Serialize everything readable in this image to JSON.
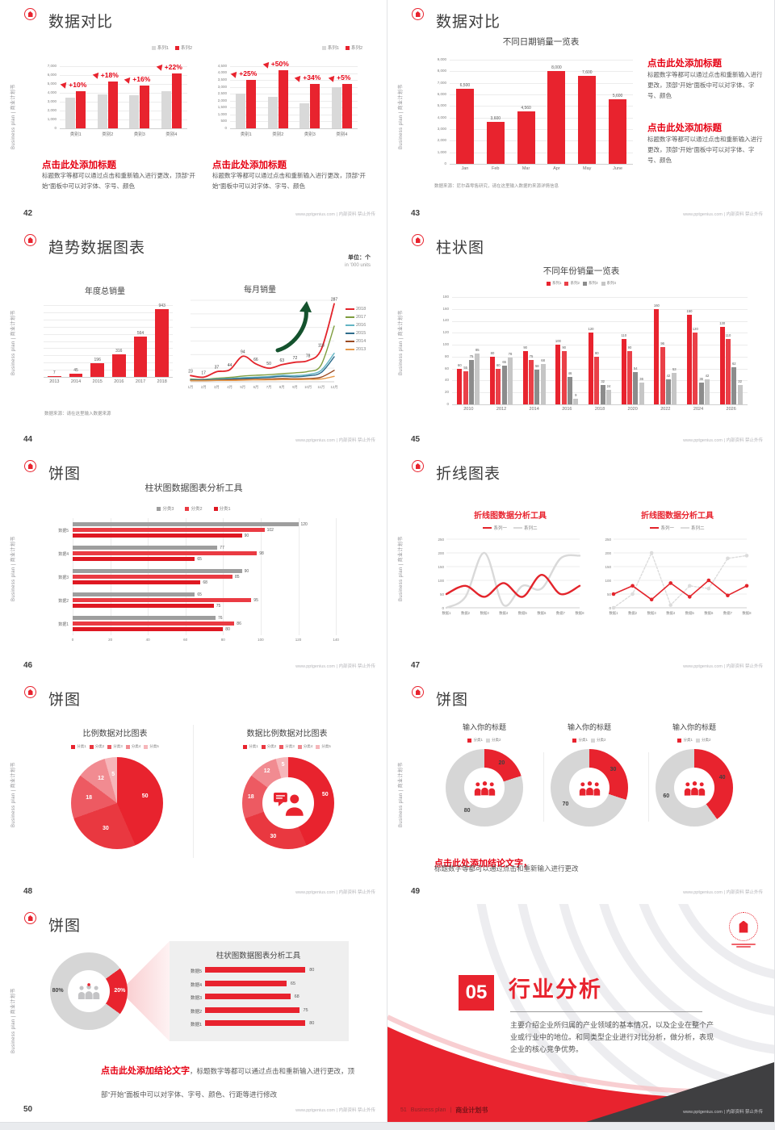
{
  "common": {
    "sidebar": "Business plan | 商业计划书",
    "footer": "www.pptgenius.com | 内部资料 禁止外传"
  },
  "colors": {
    "accent": "#E8232E",
    "accent_text": "#E60012",
    "gray_bar": "#D9D9D9",
    "dark_gray_bar": "#9E9E9E",
    "light_gray_bar": "#C6C6C6",
    "grid": "#ECECEC",
    "panel": "#EFEFEF",
    "dark_corner": "#3F3F41"
  },
  "icons": {
    "up_arrow": "dart-up-icon",
    "people": "team-people-icon",
    "person_chat": "presenter-icon",
    "growth_arrow": "growth-arrow-icon",
    "logo": "brand-logo-icon"
  },
  "slides": {
    "s42": {
      "title": "数据对比",
      "heading": "点击此处添加标题",
      "body_left": "标题数字等都可以通过点击和重新输入进行更改，顶部“开始”面板中可以对字体、字号、颜色",
      "body_right": "标题数字等都可以通过点击和重新输入进行更改，顶部“开始”面板中可以对字体、字号、颜色",
      "page": "42"
    },
    "s43": {
      "title": "数据对比",
      "heading1": "点击此处添加标题",
      "body1": "标题数字等都可以通过点击和重新输入进行更改，顶部“开始”面板中可以对字体、字号、颜色",
      "heading2": "点击此处添加标题",
      "body2": "标题数字等都可以通过点击和重新输入进行更改，顶部“开始”面板中可以对字体、字号、颜色",
      "page": "43"
    },
    "s44": {
      "title": "趋势数据图表",
      "unit1": "单位：个",
      "unit2": "in '000 units",
      "source": "数据来源：请在这里输入数据来源",
      "page": "44"
    },
    "s45": {
      "title": "柱状图",
      "page": "45"
    },
    "s46": {
      "title": "饼图",
      "page": "46"
    },
    "s47": {
      "title": "折线图表",
      "page": "47"
    },
    "s48": {
      "title": "饼图",
      "page": "48"
    },
    "s49": {
      "title": "饼图",
      "conclusion": "点击此处添加结论文字，",
      "conclusion_body": "标题数字等都可以通过点击和重新输入进行更改",
      "page": "49"
    },
    "s50": {
      "title": "饼图",
      "conclusion": "点击此处添加结论文字",
      "conclusion_tail": "，标题数字等都可以通过点击和重新输入进行更改，顶部“开始”面板中可以对字体、字号、颜色、行距等进行修改",
      "page": "50"
    },
    "s51": {
      "num": "05",
      "title": "行业分析",
      "body": "主要介绍企业所归属的产业领域的基本情况，以及企业在整个产业或行业中的地位。和同类型企业进行对比分析，做分析，表现企业的核心竞争优势。",
      "brand_en": "Business plan",
      "brand_sep": "|",
      "brand_cn": "商业计划书",
      "page": "51"
    }
  },
  "chart_data": [
    {
      "id": "c42a",
      "type": "bar",
      "ylim": [
        0,
        7000
      ],
      "ystep": 1000,
      "mt": 14,
      "categories": [
        "类别1",
        "类别2",
        "类别3",
        "类别4"
      ],
      "legend": [
        {
          "t": "系列1",
          "c": "#D9D9D9"
        },
        {
          "t": "系列2",
          "c": "#E8232E"
        }
      ],
      "series": [
        {
          "name": "系列1",
          "color": "#D9D9D9",
          "values": [
            3500,
            3800,
            3700,
            4200
          ]
        },
        {
          "name": "系列2",
          "color": "#E8232E",
          "values": [
            4200,
            5300,
            4800,
            6200
          ]
        }
      ],
      "annotations": [
        "+10%",
        "+18%",
        "+16%",
        "+22%"
      ]
    },
    {
      "id": "c42b",
      "type": "bar",
      "ylim": [
        0,
        4500
      ],
      "ystep": 500,
      "mt": 14,
      "categories": [
        "类别1",
        "类别2",
        "类别3",
        "类别4"
      ],
      "legend": [
        {
          "t": "系列1",
          "c": "#D9D9D9"
        },
        {
          "t": "系列2",
          "c": "#E8232E"
        }
      ],
      "series": [
        {
          "name": "系列1",
          "color": "#D9D9D9",
          "values": [
            2500,
            2300,
            1800,
            3000
          ]
        },
        {
          "name": "系列2",
          "color": "#E8232E",
          "values": [
            3500,
            4200,
            3200,
            3200
          ]
        }
      ],
      "annotations": [
        "+25%",
        "+50%",
        "+34%",
        "+5%"
      ]
    },
    {
      "id": "c43",
      "type": "bar",
      "title": "不同日期销量一览表",
      "source": "数据来源：尼尔森零售研究，请在这里输入数据的来源详情信息",
      "ylim": [
        0,
        9000
      ],
      "ystep": 1000,
      "mt": 12,
      "bw": 22,
      "vlabels": true,
      "categories": [
        "Jan",
        "Feb",
        "Mar",
        "Apr",
        "May",
        "June"
      ],
      "value_labels": [
        "6,500",
        "3,600",
        "4,560",
        "8,000",
        "7,600",
        "5,600"
      ],
      "series": [
        {
          "name": "销量",
          "color": "#E8232E",
          "values": [
            6500,
            3600,
            4560,
            8000,
            7600,
            5600
          ]
        }
      ]
    },
    {
      "id": "c44a",
      "type": "bar",
      "title": "年度总销量",
      "ylim": [
        0,
        1000
      ],
      "ystep": 100,
      "mt": 10,
      "showY": false,
      "vlabels": true,
      "categories": [
        "2013",
        "2014",
        "2015",
        "2016",
        "2017",
        "2018"
      ],
      "series": [
        {
          "name": "销量",
          "color": "#E8232E",
          "values": [
            7,
            45,
            196,
            316,
            564,
            943
          ]
        }
      ]
    },
    {
      "id": "c44b",
      "type": "line",
      "title": "每月销量",
      "ylim": [
        0,
        300
      ],
      "ystep": 50,
      "showY": false,
      "smooth": true,
      "x": [
        "1月",
        "2月",
        "3月",
        "4月",
        "5月",
        "6月",
        "7月",
        "8月",
        "9月",
        "10月",
        "11月",
        "12月"
      ],
      "legend": [
        {
          "t": "2018",
          "c": "#E3242B",
          "shape": "line"
        },
        {
          "t": "2017",
          "c": "#7F9D3F",
          "shape": "line"
        },
        {
          "t": "2016",
          "c": "#63B5C4",
          "shape": "line"
        },
        {
          "t": "2015",
          "c": "#2F6D8C",
          "shape": "line"
        },
        {
          "t": "2014",
          "c": "#9A4A21",
          "shape": "line"
        },
        {
          "t": "2013",
          "c": "#E79A4B",
          "shape": "line"
        }
      ],
      "series": [
        {
          "name": "2018",
          "color": "#E3242B",
          "w": 1.8,
          "labels": true,
          "values": [
            23,
            17,
            37,
            44,
            94,
            66,
            50,
            63,
            72,
            78,
            118,
            287
          ]
        },
        {
          "name": "2017",
          "color": "#7F9D3F",
          "values": [
            10,
            9,
            13,
            16,
            21,
            24,
            26,
            30,
            33,
            38,
            62,
            205
          ]
        },
        {
          "name": "2016",
          "color": "#63B5C4",
          "values": [
            8,
            8,
            10,
            12,
            15,
            17,
            19,
            24,
            23,
            27,
            42,
            105
          ]
        },
        {
          "name": "2015",
          "color": "#2F6D8C",
          "values": [
            6,
            7,
            8,
            10,
            12,
            14,
            16,
            20,
            18,
            22,
            34,
            92
          ]
        },
        {
          "name": "2014",
          "color": "#9A4A21",
          "values": [
            5,
            5,
            6,
            7,
            8,
            9,
            10,
            12,
            11,
            12,
            17,
            42
          ]
        },
        {
          "name": "2013",
          "color": "#E79A4B",
          "values": [
            4,
            4,
            5,
            5,
            6,
            7,
            7,
            8,
            8,
            9,
            10,
            20
          ]
        }
      ]
    },
    {
      "id": "c45",
      "type": "bar",
      "title": "不同年份销量一览表",
      "ylim": [
        0,
        180
      ],
      "ystep": 20,
      "mt": 8,
      "yw": 16,
      "vlabels": true,
      "vfs": 4.2,
      "categories": [
        "2010",
        "2012",
        "2014",
        "2016",
        "2018",
        "2020",
        "2022",
        "2024",
        "2026"
      ],
      "legend": [
        {
          "t": "系列1",
          "c": "#E8232E"
        },
        {
          "t": "系列2",
          "c": "#EA4048"
        },
        {
          "t": "系列3",
          "c": "#8C8C8C"
        },
        {
          "t": "系列4",
          "c": "#C6C6C6"
        }
      ],
      "series": [
        {
          "name": "系列1",
          "color": "#E8232E",
          "values": [
            60,
            80,
            90,
            100,
            120,
            110,
            160,
            150,
            130
          ]
        },
        {
          "name": "系列2",
          "color": "#EA4048",
          "values": [
            55,
            60,
            75,
            90,
            80,
            90,
            96,
            120,
            110
          ]
        },
        {
          "name": "系列3",
          "color": "#8C8C8C",
          "values": [
            75,
            65,
            58,
            46,
            32,
            54,
            42,
            36,
            62
          ]
        },
        {
          "name": "系列4",
          "color": "#C6C6C6",
          "values": [
            85,
            78,
            68,
            9,
            24,
            36,
            53,
            42,
            32
          ]
        }
      ]
    },
    {
      "id": "c46",
      "type": "barh",
      "title": "柱状图数据图表分析工具",
      "xlim": [
        0,
        152
      ],
      "xstep": 20,
      "xtickmax": 140,
      "lw": 30,
      "categories": [
        "数据5",
        "数据4",
        "数据3",
        "数据2",
        "数据1"
      ],
      "legend": [
        {
          "t": "分类3",
          "c": "#9E9E9E"
        },
        {
          "t": "分类2",
          "c": "#EA3B43"
        },
        {
          "t": "分类1",
          "c": "#DF1822"
        }
      ],
      "series": [
        {
          "name": "分类3",
          "color": "#9E9E9E",
          "values": [
            120,
            77,
            90,
            65,
            76
          ]
        },
        {
          "name": "分类2",
          "color": "#EA3B43",
          "values": [
            102,
            98,
            85,
            95,
            86
          ]
        },
        {
          "name": "分类1",
          "color": "#DF1822",
          "values": [
            90,
            65,
            68,
            75,
            80
          ]
        }
      ]
    },
    {
      "id": "c47a",
      "type": "line",
      "title": "折线图数据分析工具",
      "ylim": [
        0,
        250
      ],
      "ystep": 50,
      "showY": true,
      "smooth": true,
      "x": [
        "数据1",
        "数据2",
        "数据3",
        "数据4",
        "数据5",
        "数据6",
        "数据7",
        "数据8"
      ],
      "legend": [
        {
          "t": "系列一",
          "c": "#E3242B",
          "shape": "line"
        },
        {
          "t": "系列二",
          "c": "#D9D9D9",
          "shape": "line"
        }
      ],
      "series": [
        {
          "name": "系列二",
          "color": "#D9D9D9",
          "w": 2.4,
          "values": [
            0,
            40,
            200,
            10,
            80,
            70,
            180,
            190
          ]
        },
        {
          "name": "系列一",
          "color": "#E3242B",
          "w": 2.4,
          "values": [
            50,
            80,
            40,
            90,
            40,
            120,
            50,
            80
          ]
        }
      ]
    },
    {
      "id": "c47b",
      "type": "line",
      "title": "折线图数据分析工具",
      "ylim": [
        0,
        250
      ],
      "ystep": 50,
      "showY": true,
      "markers": true,
      "x": [
        "数据1",
        "数据2",
        "数据3",
        "数据4",
        "数据5",
        "数据6",
        "数据7",
        "数据8"
      ],
      "legend": [
        {
          "t": "系列一",
          "c": "#E3242B",
          "shape": "line"
        },
        {
          "t": "系列二",
          "c": "#DCDCDC",
          "shape": "line"
        }
      ],
      "series": [
        {
          "name": "系列二",
          "color": "#DCDCDC",
          "w": 1.4,
          "dash": "2.5,2",
          "values": [
            0,
            50,
            200,
            10,
            80,
            70,
            180,
            190
          ]
        },
        {
          "name": "系列一",
          "color": "#E3242B",
          "w": 1.6,
          "values": [
            50,
            80,
            30,
            90,
            40,
            100,
            45,
            80
          ]
        }
      ]
    },
    {
      "id": "c48a",
      "type": "pie",
      "title": "比例数据对比图表",
      "values": [
        50,
        30,
        18,
        12,
        5
      ],
      "labels": [
        "50",
        "30",
        "18",
        "12",
        "5"
      ],
      "colors": [
        "#E8232E",
        "#E93840",
        "#ED5A62",
        "#F18B91",
        "#F6B6BA"
      ],
      "label_color": "#fff",
      "lr": 0.62,
      "legend": [
        {
          "t": "分类1",
          "c": "#E8232E"
        },
        {
          "t": "分类2",
          "c": "#E93840"
        },
        {
          "t": "分类3",
          "c": "#ED5A62"
        },
        {
          "t": "分类4",
          "c": "#F18B91"
        },
        {
          "t": "分类5",
          "c": "#F6B6BA"
        }
      ]
    },
    {
      "id": "c48b",
      "type": "pie",
      "title": "数据比例数据对比图表",
      "values": [
        50,
        30,
        18,
        12,
        5
      ],
      "labels": [
        "50",
        "30",
        "18",
        "12",
        "5"
      ],
      "colors": [
        "#E8232E",
        "#E93840",
        "#ED5A62",
        "#F18B91",
        "#F6B6BA"
      ],
      "label_color": "#fff",
      "lr": 0.82,
      "hole": 64,
      "icon": "person_chat",
      "legend": [
        {
          "t": "分类1",
          "c": "#E8232E"
        },
        {
          "t": "分类2",
          "c": "#E93840"
        },
        {
          "t": "分类3",
          "c": "#ED5A62"
        },
        {
          "t": "分类4",
          "c": "#F18B91"
        },
        {
          "t": "分类5",
          "c": "#F6B6BA"
        }
      ]
    },
    {
      "id": "c49a",
      "type": "pie",
      "title": "输入你的标题",
      "values": [
        20,
        80
      ],
      "labels": [
        "20",
        "80"
      ],
      "colors": [
        "#E8232E",
        "#D6D6D6"
      ],
      "label_color": "#3f3f3f",
      "lr": 0.76,
      "hole": 50,
      "icon": "people",
      "legend": [
        {
          "t": "分类1",
          "c": "#E8232E"
        },
        {
          "t": "分类2",
          "c": "#D6D6D6"
        }
      ]
    },
    {
      "id": "c49b",
      "type": "pie",
      "title": "输入你的标题",
      "values": [
        30,
        70
      ],
      "labels": [
        "30",
        "70"
      ],
      "colors": [
        "#E8232E",
        "#D6D6D6"
      ],
      "label_color": "#3f3f3f",
      "lr": 0.76,
      "hole": 50,
      "icon": "people",
      "legend": [
        {
          "t": "分类1",
          "c": "#E8232E"
        },
        {
          "t": "分类2",
          "c": "#D6D6D6"
        }
      ]
    },
    {
      "id": "c49c",
      "type": "pie",
      "title": "输入你的标题",
      "values": [
        40,
        60
      ],
      "labels": [
        "40",
        "60"
      ],
      "colors": [
        "#E8232E",
        "#D6D6D6"
      ],
      "label_color": "#3f3f3f",
      "lr": 0.76,
      "hole": 50,
      "icon": "people",
      "legend": [
        {
          "t": "分类1",
          "c": "#E8232E"
        },
        {
          "t": "分类2",
          "c": "#D6D6D6"
        }
      ]
    },
    {
      "id": "c50a",
      "type": "pie",
      "values": [
        20,
        80
      ],
      "labels": [
        "20%",
        "80%"
      ],
      "colors": [
        "#E8232E",
        "#D6D6D6"
      ],
      "label_colors": [
        "#fff",
        "#3f3f3f"
      ],
      "lr": 0.8,
      "start": 54,
      "hole": 52,
      "icon": "people_badge"
    },
    {
      "id": "c50b",
      "type": "rows",
      "title": "柱状图数据图表分析工具",
      "max": 85,
      "categories": [
        "数据5",
        "数据4",
        "数据3",
        "数据2",
        "数据1"
      ],
      "values": [
        80,
        65,
        68,
        75,
        80
      ]
    }
  ]
}
